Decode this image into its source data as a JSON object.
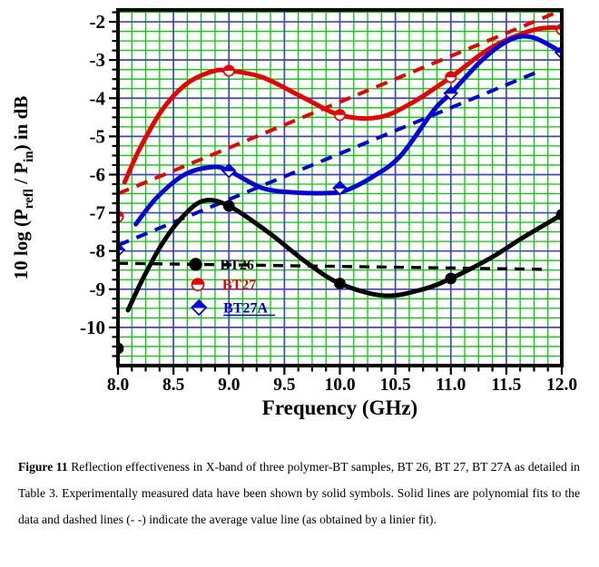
{
  "figure": {
    "caption_label": "Figure 11",
    "caption_text": " Reflection effectiveness in X-band of three polymer-BT samples, BT 26, BT 27, BT 27A as detailed in Table 3. Experimentally measured data have been shown by solid symbols. Solid lines are polynomial fits to the data and dashed lines (- -) indicate the average value line (as obtained by a linier fit)."
  },
  "chart_data": {
    "type": "line",
    "title": "",
    "xlabel": "Frequency (GHz)",
    "ylabel_parts": [
      [
        "10 log (P",
        false
      ],
      [
        "refl",
        true
      ],
      [
        " / P",
        false
      ],
      [
        "in",
        true
      ],
      [
        ") in dB",
        false
      ]
    ],
    "xlim": [
      8.0,
      12.0
    ],
    "ylim": [
      -11.0,
      -1.69
    ],
    "x_major_ticks": [
      8.0,
      8.5,
      9.0,
      9.5,
      10.0,
      10.5,
      11.0,
      11.5,
      12.0
    ],
    "x_tick_labels": [
      "8.0",
      "8.5",
      "9.0",
      "9.5",
      "10.0",
      "10.5",
      "11.0",
      "11.5",
      "12.0"
    ],
    "y_major_ticks": [
      -2,
      -3,
      -4,
      -5,
      -6,
      -7,
      -8,
      -9,
      -10
    ],
    "y_tick_labels": [
      "-2",
      "-3",
      "-4",
      "-5",
      "-6",
      "-7",
      "-8",
      "-9",
      "-10"
    ],
    "x_minor_step": 0.125,
    "y_minor_step": 0.25,
    "grid_major_color": "#4040cc",
    "grid_minor_color": "#00cc00",
    "frame_color": "#000000",
    "series": [
      {
        "name": "BT26",
        "color": "#000000",
        "marker": "circle",
        "marker_fill": "full",
        "points": [
          [
            8.0,
            -10.55
          ],
          [
            9.0,
            -6.82
          ],
          [
            10.0,
            -8.85
          ],
          [
            11.0,
            -8.72
          ],
          [
            12.0,
            -7.05
          ]
        ],
        "fit_curve": [
          [
            8.09,
            -9.55
          ],
          [
            8.22,
            -8.75
          ],
          [
            8.4,
            -7.8
          ],
          [
            8.6,
            -7.05
          ],
          [
            8.78,
            -6.68
          ],
          [
            9.0,
            -6.82
          ],
          [
            9.35,
            -7.5
          ],
          [
            9.7,
            -8.3
          ],
          [
            10.0,
            -8.85
          ],
          [
            10.4,
            -9.17
          ],
          [
            10.75,
            -9.0
          ],
          [
            11.0,
            -8.72
          ],
          [
            11.35,
            -8.2
          ],
          [
            11.65,
            -7.65
          ],
          [
            12.0,
            -7.05
          ]
        ],
        "avg_line": [
          [
            8.0,
            -8.32
          ],
          [
            11.83,
            -8.48
          ]
        ],
        "avg_dash": "11 8",
        "avg_width": 3.4
      },
      {
        "name": "BT27",
        "color": "#ee0000",
        "marker": "circle",
        "marker_fill": "half",
        "points": [
          [
            8.0,
            -7.1
          ],
          [
            9.0,
            -3.28
          ],
          [
            10.0,
            -4.44
          ],
          [
            11.0,
            -3.45
          ],
          [
            12.0,
            -2.2
          ]
        ],
        "fit_curve": [
          [
            8.06,
            -6.2
          ],
          [
            8.2,
            -5.3
          ],
          [
            8.4,
            -4.3
          ],
          [
            8.62,
            -3.62
          ],
          [
            8.85,
            -3.3
          ],
          [
            9.0,
            -3.28
          ],
          [
            9.3,
            -3.45
          ],
          [
            9.65,
            -3.95
          ],
          [
            10.0,
            -4.44
          ],
          [
            10.35,
            -4.5
          ],
          [
            10.65,
            -4.12
          ],
          [
            11.0,
            -3.45
          ],
          [
            11.35,
            -2.7
          ],
          [
            11.7,
            -2.25
          ],
          [
            11.9,
            -2.15
          ],
          [
            12.0,
            -2.18
          ]
        ],
        "avg_line": [
          [
            8.0,
            -6.5
          ],
          [
            11.93,
            -1.78
          ]
        ],
        "avg_dash": "13 9",
        "avg_width": 4
      },
      {
        "name": "BT27A",
        "color": "#0000e0",
        "marker": "diamond",
        "marker_fill": "half",
        "points": [
          [
            8.0,
            -7.97
          ],
          [
            9.0,
            -5.9
          ],
          [
            10.0,
            -6.35
          ],
          [
            11.0,
            -3.87
          ],
          [
            12.0,
            -2.8
          ]
        ],
        "fit_curve": [
          [
            8.16,
            -7.3
          ],
          [
            8.35,
            -6.6
          ],
          [
            8.6,
            -6.0
          ],
          [
            8.85,
            -5.8
          ],
          [
            9.0,
            -5.9
          ],
          [
            9.3,
            -6.35
          ],
          [
            9.6,
            -6.47
          ],
          [
            9.9,
            -6.48
          ],
          [
            10.05,
            -6.42
          ],
          [
            10.3,
            -6.05
          ],
          [
            10.55,
            -5.5
          ],
          [
            10.85,
            -4.3
          ],
          [
            11.0,
            -3.87
          ],
          [
            11.3,
            -2.95
          ],
          [
            11.55,
            -2.45
          ],
          [
            11.75,
            -2.42
          ],
          [
            12.0,
            -2.8
          ]
        ],
        "avg_line": [
          [
            8.0,
            -7.85
          ],
          [
            11.8,
            -3.29
          ]
        ],
        "avg_dash": "13 9",
        "avg_width": 4
      }
    ],
    "legend": {
      "text_dx_ghz": 0.22,
      "rows": [
        {
          "label": "BT26",
          "x": 8.7,
          "y": -8.35,
          "underline": false,
          "series": 0
        },
        {
          "label": "BT27",
          "x": 8.72,
          "y": -8.88,
          "underline": false,
          "series": 1
        },
        {
          "label": "BT27A",
          "x": 8.73,
          "y": -9.48,
          "underline": true,
          "series": 2
        }
      ]
    }
  }
}
